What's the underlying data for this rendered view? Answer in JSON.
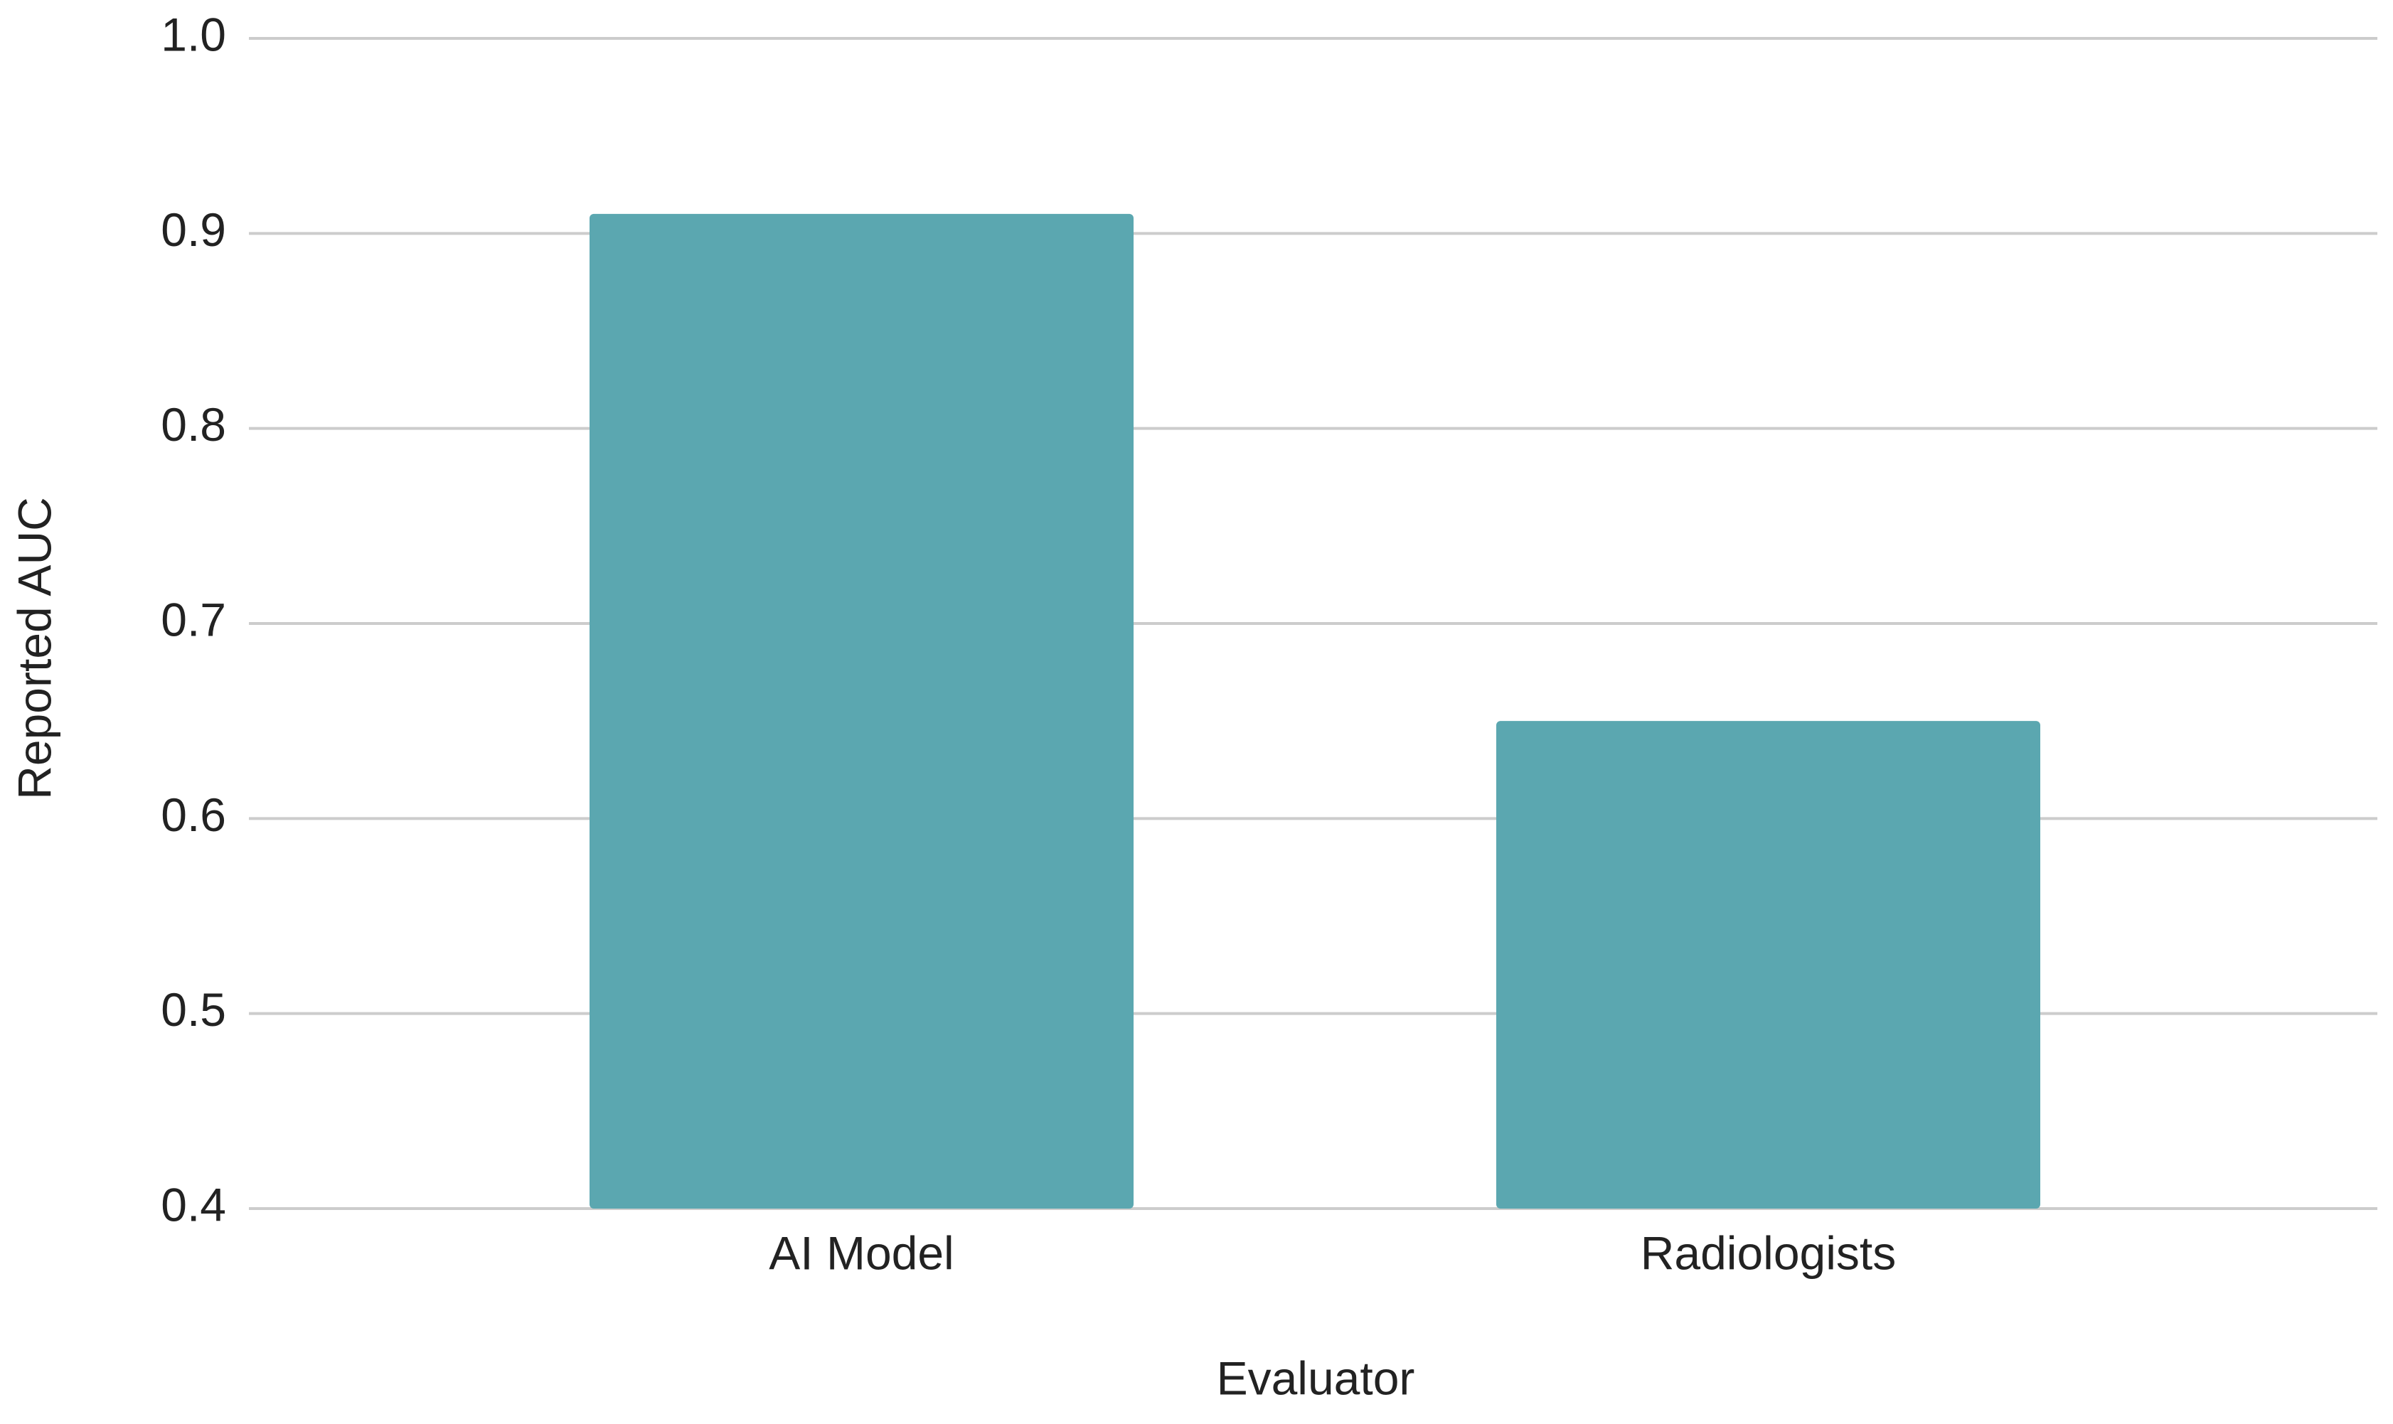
{
  "chart_data": {
    "type": "bar",
    "x_label": "Evaluator",
    "y_label": "Reported AUC",
    "categories": [
      "AI Model",
      "Radiologists"
    ],
    "values": [
      0.91,
      0.65
    ],
    "color": "#5ba7b0",
    "ylim": [
      0.4,
      1.0
    ],
    "yticks": [
      0.4,
      0.5,
      0.6,
      0.7,
      0.8,
      0.9,
      {
        "value": 1,
        "label": "1.0"
      }
    ],
    "grid": true
  }
}
